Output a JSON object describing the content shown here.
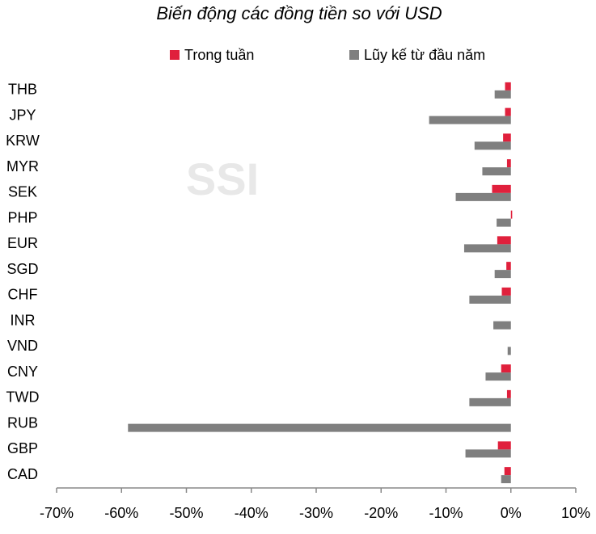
{
  "chart_data": {
    "type": "hbar",
    "title": "Biến động các đồng tiền so với USD",
    "watermark": "SSI",
    "categories": [
      "THB",
      "JPY",
      "KRW",
      "MYR",
      "SEK",
      "PHP",
      "EUR",
      "SGD",
      "CHF",
      "INR",
      "VND",
      "CNY",
      "TWD",
      "RUB",
      "GBP",
      "CAD"
    ],
    "series": [
      {
        "name": "Trong tuần",
        "color": "#e0203c",
        "values": [
          -0.9,
          -0.9,
          -1.2,
          -0.6,
          -2.9,
          0.2,
          -2.1,
          -0.7,
          -1.4,
          0,
          0,
          -1.5,
          -0.6,
          0,
          -2.0,
          -1.0
        ]
      },
      {
        "name": "Lũy kế từ đầu năm",
        "color": "#7f7f7f",
        "values": [
          -2.5,
          -12.6,
          -5.6,
          -4.4,
          -8.5,
          -2.2,
          -7.2,
          -2.5,
          -6.4,
          -2.7,
          -0.5,
          -3.9,
          -6.4,
          -59,
          -7.0,
          -1.5
        ]
      }
    ],
    "xlim": [
      -70,
      10
    ],
    "xticks": [
      {
        "value": -70,
        "label": "-70%"
      },
      {
        "value": -60,
        "label": "-60%"
      },
      {
        "value": -50,
        "label": "-50%"
      },
      {
        "value": -40,
        "label": "-40%"
      },
      {
        "value": -30,
        "label": "-30%"
      },
      {
        "value": -20,
        "label": "-20%"
      },
      {
        "value": -10,
        "label": "-10%"
      },
      {
        "value": 0,
        "label": "0%"
      },
      {
        "value": 10,
        "label": "10%"
      }
    ],
    "grid": false
  }
}
